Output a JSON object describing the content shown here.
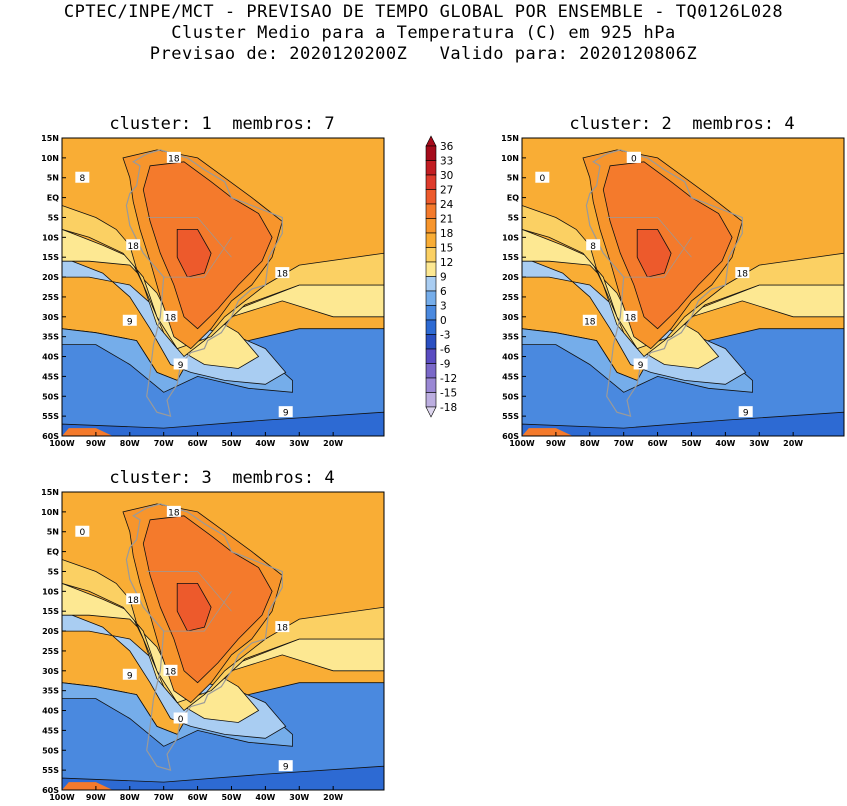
{
  "header": {
    "line1": "CPTEC/INPE/MCT - PREVISAO DE TEMPO GLOBAL POR ENSEMBLE - TQ0126L028",
    "line2": "Cluster Medio para a Temperatura (C) em 925 hPa",
    "line3": "Previsao de: 2020120200Z   Valido para: 2020120806Z"
  },
  "panels": [
    {
      "title": "cluster: 1  membros: 7",
      "labels": [
        "18",
        "18",
        "18",
        "18",
        "9",
        "9",
        "9",
        "8"
      ]
    },
    {
      "title": "cluster: 2  membros: 4",
      "labels": [
        "18",
        "8",
        "18",
        "18",
        "18",
        "9",
        "9",
        "0",
        "0"
      ]
    },
    {
      "title": "cluster: 3  membros: 4",
      "labels": [
        "18",
        "18",
        "18",
        "18",
        "9",
        "9",
        "0",
        "0"
      ]
    }
  ],
  "axes": {
    "lat_ticks": [
      "15N",
      "10N",
      "5N",
      "EQ",
      "5S",
      "10S",
      "15S",
      "20S",
      "25S",
      "30S",
      "35S",
      "40S",
      "45S",
      "50S",
      "55S",
      "60S"
    ],
    "lon_ticks": [
      "100W",
      "90W",
      "80W",
      "70W",
      "60W",
      "50W",
      "40W",
      "30W",
      "20W"
    ]
  },
  "colorbar": {
    "levels": [
      "36",
      "33",
      "30",
      "27",
      "24",
      "21",
      "18",
      "15",
      "12",
      "9",
      "6",
      "3",
      "0",
      "-3",
      "-6",
      "-9",
      "-12",
      "-15",
      "-18"
    ],
    "colors": [
      "#a50b1b",
      "#c21d22",
      "#de3b2c",
      "#ed5a2c",
      "#f47a2c",
      "#f7952c",
      "#f9ad35",
      "#fbd063",
      "#fde892",
      "#a9cdf2",
      "#75adea",
      "#4a89df",
      "#2d6ad3",
      "#2a4fc1",
      "#5a4cc1",
      "#7a68c8",
      "#9a88d4",
      "#bcaee0",
      "#ddd6ee"
    ]
  }
}
